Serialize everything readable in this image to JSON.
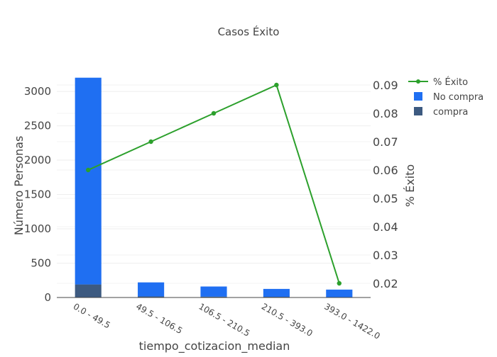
{
  "chart_data": {
    "type": "bar",
    "title": "Casos Éxito",
    "xlabel": "tiempo_cotizacion_median",
    "ylabel": "Número Personas",
    "y2label": "% Éxito",
    "categories": [
      "0.0 - 49.5",
      "49.5 - 106.5",
      "106.5 - 210.5",
      "210.5 - 393.0",
      "393.0 - 1422.0"
    ],
    "stacked": true,
    "series": [
      {
        "name": "compra",
        "type": "bar",
        "axis": "left",
        "color": "#3d5a80",
        "values": [
          190,
          15,
          12,
          10,
          3
        ]
      },
      {
        "name": "No compra",
        "type": "bar",
        "axis": "left",
        "color": "#1f6ff2",
        "values": [
          3010,
          205,
          148,
          115,
          112
        ]
      },
      {
        "name": "% Éxito",
        "type": "line",
        "axis": "right",
        "color": "#2ca02c",
        "values": [
          0.06,
          0.07,
          0.08,
          0.09,
          0.02
        ]
      }
    ],
    "ylim": [
      0,
      3300
    ],
    "y_ticks": [
      0,
      500,
      1000,
      1500,
      2000,
      2500,
      3000
    ],
    "y2lim": [
      0.015,
      0.095
    ],
    "y2_ticks": [
      0.02,
      0.03,
      0.04,
      0.05,
      0.06,
      0.07,
      0.08,
      0.09
    ],
    "legend": {
      "placement": "top-right",
      "entries": [
        {
          "label": "% Éxito",
          "kind": "line",
          "color": "#2ca02c"
        },
        {
          "label": "No compra",
          "kind": "box",
          "color": "#1f6ff2"
        },
        {
          "label": "compra",
          "kind": "box",
          "color": "#3d5a80"
        }
      ]
    },
    "grid": true
  }
}
